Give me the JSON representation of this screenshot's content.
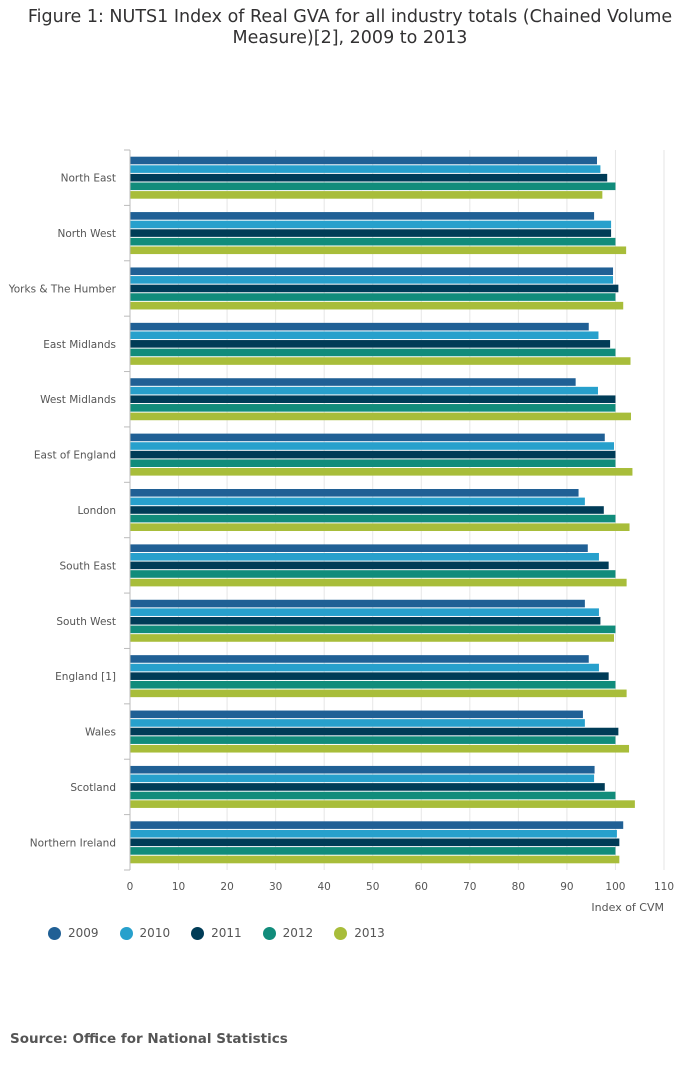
{
  "title": "Figure 1: NUTS1 Index of Real GVA for all industry totals (Chained Volume Measure)[2], 2009 to 2013",
  "source": "Source: Office for National Statistics",
  "colors": {
    "2009": "#206095",
    "2010": "#27a0cc",
    "2011": "#003c57",
    "2012": "#118c7b",
    "2013": "#a8bd3a"
  },
  "chart_data": {
    "type": "bar",
    "orientation": "horizontal",
    "title": "Figure 1: NUTS1 Index of Real GVA for all industry totals (Chained Volume Measure)[2], 2009 to 2013",
    "xlabel": "Index of CVM",
    "ylabel": "",
    "xlim": [
      0,
      110
    ],
    "xticks": [
      0,
      10,
      20,
      30,
      40,
      50,
      60,
      70,
      80,
      90,
      100,
      110
    ],
    "grid": true,
    "legend_position": "bottom-left",
    "categories": [
      "North East",
      "North West",
      "Yorks & The Humber",
      "East Midlands",
      "West Midlands",
      "East of England",
      "London",
      "South East",
      "South West",
      "England [1]",
      "Wales",
      "Scotland",
      "Northern Ireland"
    ],
    "series": [
      {
        "name": "2009",
        "values": [
          96.2,
          95.6,
          99.5,
          94.5,
          91.8,
          97.8,
          92.4,
          94.3,
          93.7,
          94.5,
          93.3,
          95.7,
          101.6
        ]
      },
      {
        "name": "2010",
        "values": [
          96.9,
          99.1,
          99.5,
          96.5,
          96.4,
          99.7,
          93.7,
          96.6,
          96.6,
          96.6,
          93.7,
          95.6,
          100.3
        ]
      },
      {
        "name": "2011",
        "values": [
          98.3,
          99.1,
          100.6,
          98.9,
          100.0,
          100.0,
          97.6,
          98.6,
          96.9,
          98.6,
          100.6,
          97.8,
          100.8
        ]
      },
      {
        "name": "2012",
        "values": [
          100.0,
          100.0,
          100.0,
          100.0,
          100.0,
          100.0,
          100.0,
          100.0,
          100.0,
          100.0,
          100.0,
          100.0,
          100.0
        ]
      },
      {
        "name": "2013",
        "values": [
          97.3,
          102.2,
          101.6,
          103.1,
          103.2,
          103.5,
          102.9,
          102.3,
          99.7,
          102.3,
          102.8,
          104.0,
          100.8
        ]
      }
    ]
  }
}
